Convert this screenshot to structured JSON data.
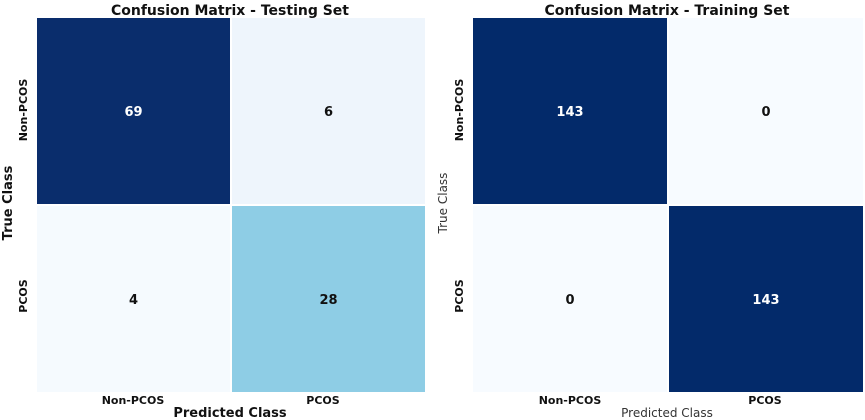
{
  "chart_data": [
    {
      "type": "heatmap",
      "title": "Confusion Matrix - Testing Set",
      "xlabel": "Predicted Class",
      "ylabel": "True Class",
      "x_categories": [
        "Non-PCOS",
        "PCOS"
      ],
      "y_categories": [
        "Non-PCOS",
        "PCOS"
      ],
      "values": [
        [
          69,
          6
        ],
        [
          4,
          28
        ]
      ],
      "colormap": "Blues",
      "cell_colors": [
        [
          "#0a2d6c",
          "#eef5fc"
        ],
        [
          "#f5fafe",
          "#8ecde5"
        ]
      ],
      "text_colors": [
        [
          "#ffffff",
          "#111111"
        ],
        [
          "#111111",
          "#111111"
        ]
      ]
    },
    {
      "type": "heatmap",
      "title": "Confusion Matrix - Training Set",
      "xlabel": "Predicted Class",
      "ylabel": "True Class",
      "x_categories": [
        "Non-PCOS",
        "PCOS"
      ],
      "y_categories": [
        "Non-PCOS",
        "PCOS"
      ],
      "values": [
        [
          143,
          0
        ],
        [
          0,
          143
        ]
      ],
      "colormap": "Blues",
      "cell_colors": [
        [
          "#032a6a",
          "#f7fbff"
        ],
        [
          "#f7fbff",
          "#032a6a"
        ]
      ],
      "text_colors": [
        [
          "#ffffff",
          "#111111"
        ],
        [
          "#111111",
          "#ffffff"
        ]
      ]
    }
  ]
}
